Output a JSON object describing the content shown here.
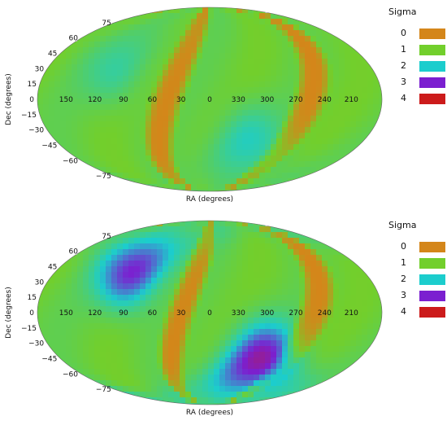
{
  "chart_data": [
    {
      "type": "heatmap",
      "projection": "mollweide",
      "xlabel": "RA (degrees)",
      "ylabel": "Dec (degrees)",
      "ra_ticks": [
        "210",
        "240",
        "270",
        "300",
        "330",
        "0",
        "30",
        "60",
        "90",
        "120",
        "150"
      ],
      "dec_ticks": [
        "75",
        "60",
        "45",
        "30",
        "15",
        "0",
        "−15",
        "−30",
        "−45",
        "−60",
        "−75"
      ],
      "legend_title": "Sigma",
      "legend": [
        {
          "label": "0",
          "color": "#d4861a"
        },
        {
          "label": "1",
          "color": "#72cf2c"
        },
        {
          "label": "2",
          "color": "#1ccdcd"
        },
        {
          "label": "3",
          "color": "#7b1fd0"
        },
        {
          "label": "4",
          "color": "#cc1b1b"
        }
      ],
      "sigma_range": [
        0,
        4
      ],
      "features": {
        "sigma0_bands": [
          {
            "ra_center": 255,
            "half_width": 15
          },
          {
            "ra_center": 45,
            "half_width": 15
          }
        ],
        "peaks": [
          {
            "ra": 315,
            "dec": -40,
            "sigma": 1.9
          },
          {
            "ra": 105,
            "dec": 30,
            "sigma": 1.7
          }
        ],
        "background_sigma": 1.1
      },
      "grid": false
    },
    {
      "type": "heatmap",
      "projection": "mollweide",
      "xlabel": "RA (degrees)",
      "ylabel": "Dec (degrees)",
      "ra_ticks": [
        "210",
        "240",
        "270",
        "300",
        "330",
        "0",
        "30",
        "60",
        "90",
        "120",
        "150"
      ],
      "dec_ticks": [
        "75",
        "60",
        "45",
        "30",
        "15",
        "0",
        "−15",
        "−30",
        "−45",
        "−60",
        "−75"
      ],
      "legend_title": "Sigma",
      "legend": [
        {
          "label": "0",
          "color": "#d4861a"
        },
        {
          "label": "1",
          "color": "#72cf2c"
        },
        {
          "label": "2",
          "color": "#1ccdcd"
        },
        {
          "label": "3",
          "color": "#7b1fd0"
        },
        {
          "label": "4",
          "color": "#cc1b1b"
        }
      ],
      "sigma_range": [
        0,
        4
      ],
      "features": {
        "sigma0_bands": [
          {
            "ra_center": 250,
            "half_width": 15
          },
          {
            "ra_center": 30,
            "half_width": 13
          }
        ],
        "peaks": [
          {
            "ra": 300,
            "dec": -45,
            "sigma": 3.3
          },
          {
            "ra": 90,
            "dec": 40,
            "sigma": 3.0
          }
        ],
        "background_sigma": 1.1
      },
      "grid": false
    }
  ]
}
